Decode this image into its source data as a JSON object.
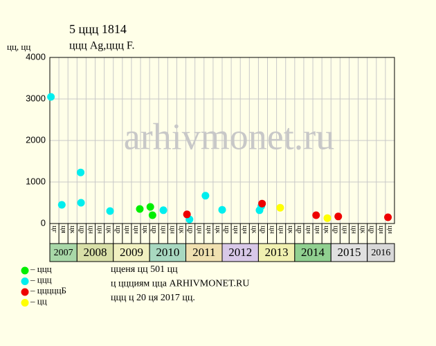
{
  "chart_data": {
    "type": "scatter",
    "title": "5 ццц 1814",
    "subtitle": "ццц Ag,ццц F.",
    "y_label": "цц, цц",
    "watermark": "arhivmonet.ru",
    "xlim": [
      2007.25,
      2016.75
    ],
    "ylim": [
      0,
      4000
    ],
    "yticks": [
      0,
      1000,
      2000,
      3000,
      4000
    ],
    "grid": true,
    "categories": [
      "цг",
      "ця",
      "цк",
      "цр",
      "цн",
      "цн",
      "цк",
      "цр",
      "цн",
      "цн",
      "цк",
      "цр",
      "цн",
      "цн",
      "цк",
      "цр",
      "цн",
      "цн",
      "цк",
      "цр",
      "цн",
      "цн",
      "цк",
      "цр",
      "цн",
      "цн",
      "цк",
      "цр",
      "цн",
      "цн",
      "цк",
      "цр",
      "цн",
      "цн",
      "цк",
      "цр",
      "цн",
      "цн"
    ],
    "years": [
      {
        "year": 2007,
        "color": "#a8d8a8"
      },
      {
        "year": 2008,
        "color": "#d8e0a8"
      },
      {
        "year": 2009,
        "color": "#f0f0c0"
      },
      {
        "year": 2010,
        "color": "#a8d8c0"
      },
      {
        "year": 2011,
        "color": "#f0e0b0"
      },
      {
        "year": 2012,
        "color": "#d8c8e8"
      },
      {
        "year": 2013,
        "color": "#f0f0b0"
      },
      {
        "year": 2014,
        "color": "#90d090"
      },
      {
        "year": 2015,
        "color": "#e0e0e0"
      },
      {
        "year": 2016,
        "color": "#d8d8d8"
      }
    ],
    "series": [
      {
        "name": "– ццц",
        "color": "#00ee00",
        "x": [
          2009.73,
          2010.02,
          2010.08
        ],
        "values": [
          350,
          400,
          200
        ]
      },
      {
        "name": "– ццц",
        "color": "#00eeee",
        "x": [
          2007.28,
          2007.58,
          2008.1,
          2008.11,
          2008.91,
          2010.38,
          2011.1,
          2011.54,
          2012.0,
          2013.03,
          2013.08
        ],
        "values": [
          3050,
          450,
          1230,
          500,
          300,
          320,
          100,
          670,
          330,
          320,
          420
        ]
      },
      {
        "name": "– цццццБ",
        "color": "#ee0000",
        "x": [
          2011.03,
          2013.1,
          2014.59,
          2015.2,
          2016.57
        ],
        "values": [
          220,
          480,
          200,
          170,
          150
        ]
      },
      {
        "name": "– цц",
        "color": "#ffff00",
        "x": [
          2013.6,
          2014.9
        ],
        "values": [
          380,
          130
        ]
      }
    ],
    "notes": [
      "цценя цц 501 цц",
      "ц ццциям цца ARHIVMONET.RU",
      "ццц ц 20 ця 2017 цц."
    ]
  }
}
